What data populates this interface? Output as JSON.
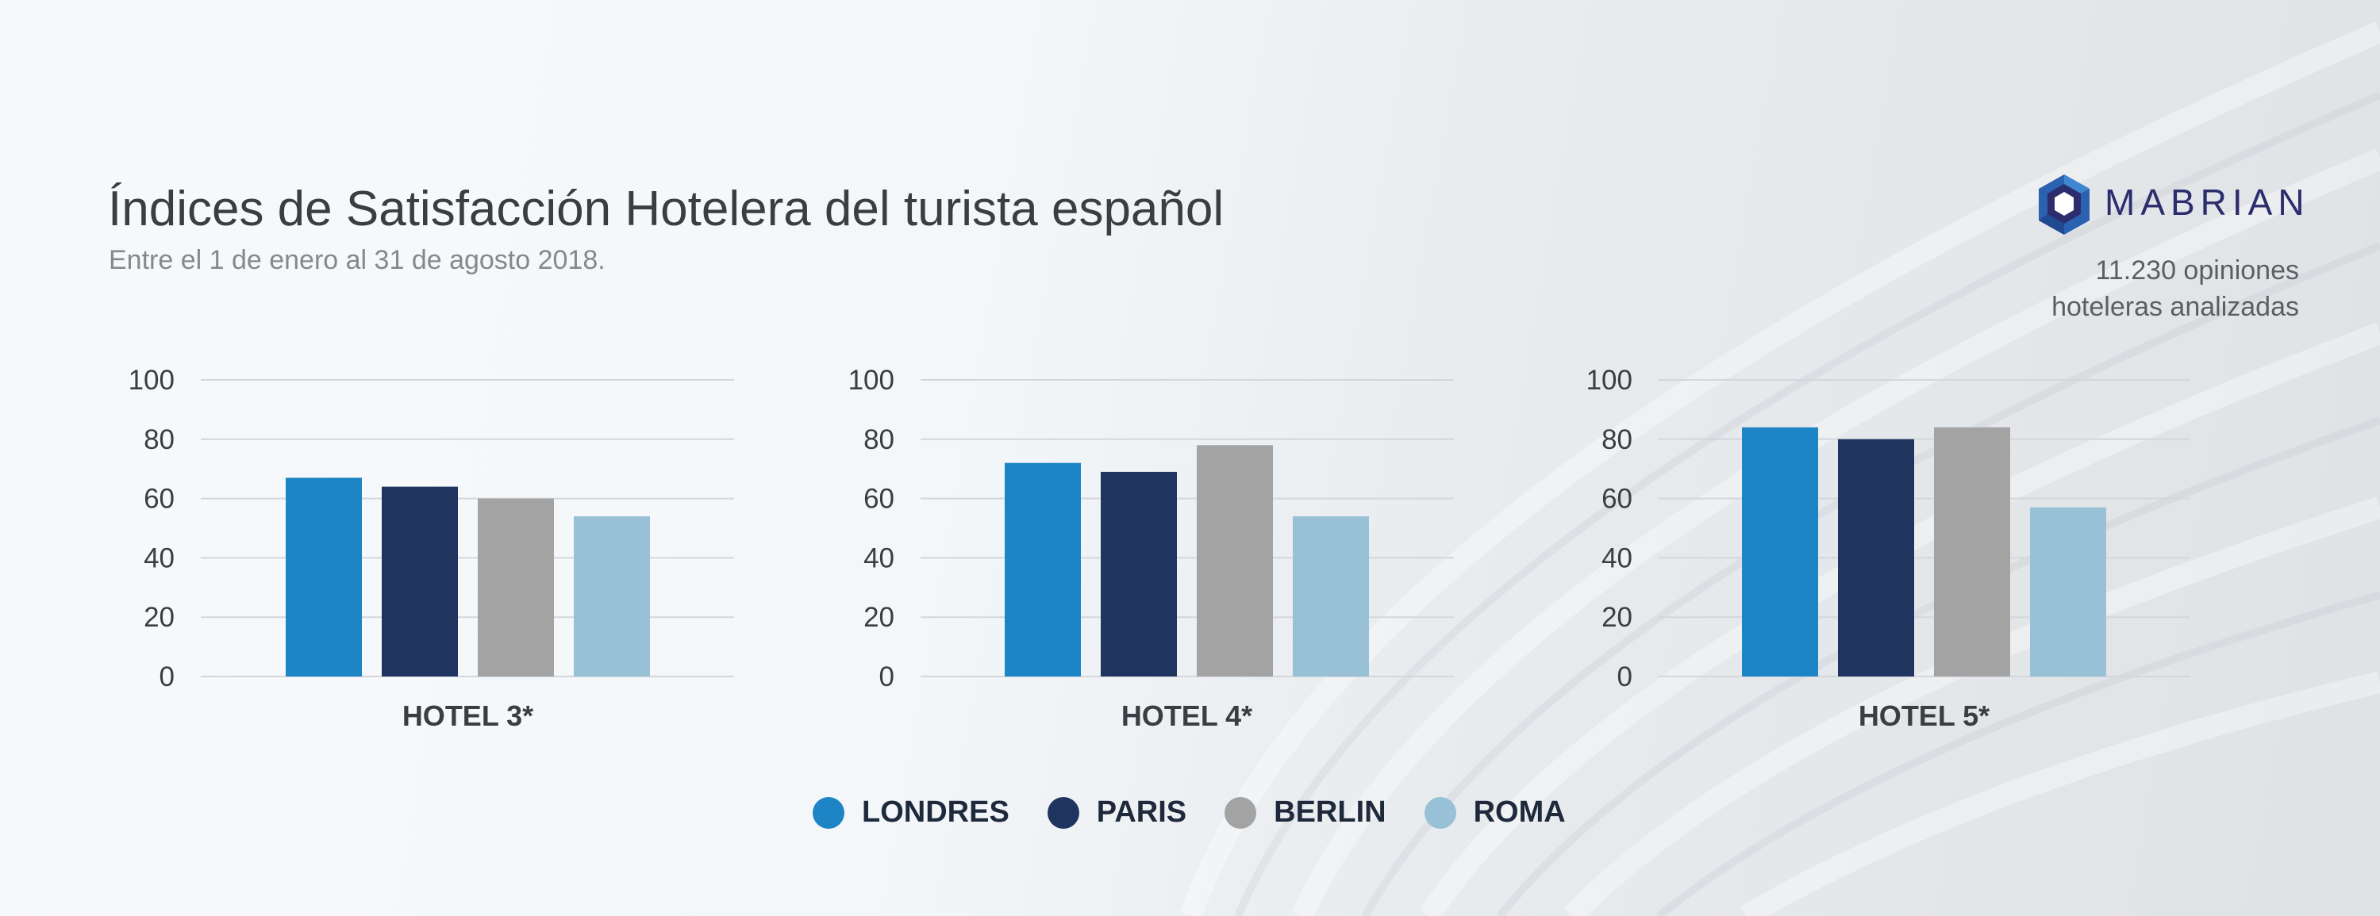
{
  "header": {
    "title": "Índices de Satisfacción Hotelera del turista español",
    "subtitle": "Entre el 1 de enero al 31 de agosto 2018."
  },
  "brand": {
    "name": "MABRIAN",
    "logo_icon": "hexagon-logo-icon",
    "note_line1": "11.230 opiniones",
    "note_line2": "hoteleras analizadas"
  },
  "chart_data": [
    {
      "type": "bar",
      "category": "HOTEL 3*",
      "series_names": [
        "LONDRES",
        "PARIS",
        "BERLIN",
        "ROMA"
      ],
      "values": [
        67,
        64,
        60,
        54
      ],
      "ylim": [
        0,
        100
      ],
      "yticks": [
        0,
        20,
        40,
        60,
        80,
        100
      ]
    },
    {
      "type": "bar",
      "category": "HOTEL 4*",
      "series_names": [
        "LONDRES",
        "PARIS",
        "BERLIN",
        "ROMA"
      ],
      "values": [
        72,
        69,
        78,
        54
      ],
      "ylim": [
        0,
        100
      ],
      "yticks": [
        0,
        20,
        40,
        60,
        80,
        100
      ]
    },
    {
      "type": "bar",
      "category": "HOTEL 5*",
      "series_names": [
        "LONDRES",
        "PARIS",
        "BERLIN",
        "ROMA"
      ],
      "values": [
        84,
        80,
        84,
        57
      ],
      "ylim": [
        0,
        100
      ],
      "yticks": [
        0,
        20,
        40,
        60,
        80,
        100
      ]
    }
  ],
  "legend": [
    {
      "label": "LONDRES",
      "color": "#1d84c6"
    },
    {
      "label": "PARIS",
      "color": "#1f3560"
    },
    {
      "label": "BERLIN",
      "color": "#a3a3a3"
    },
    {
      "label": "ROMA",
      "color": "#98c0d6"
    }
  ],
  "colors": {
    "londres": "#1d84c6",
    "paris": "#1f3560",
    "berlin": "#a3a3a3",
    "roma": "#98c0d6",
    "logo_outer": "#2b62b0",
    "logo_inner": "#2c2d6d"
  }
}
